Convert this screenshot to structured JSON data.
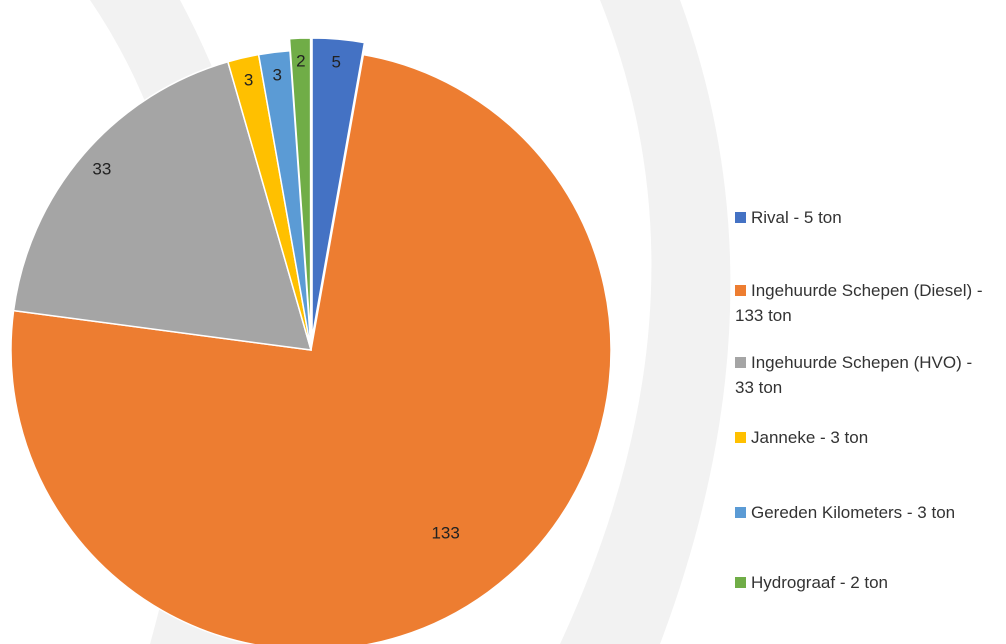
{
  "chart_data": {
    "type": "pie",
    "series": [
      {
        "name": "Rival - 5 ton",
        "color": "#4472c4",
        "value": 5
      },
      {
        "name": "Ingehuurde Schepen (Diesel) - 133 ton",
        "color": "#ed7d31",
        "value": 133
      },
      {
        "name": "Ingehuurde Schepen (HVO) - 33 ton",
        "color": "#a5a5a5",
        "value": 33
      },
      {
        "name": "Janneke - 3 ton",
        "color": "#ffc000",
        "value": 3
      },
      {
        "name": "Gereden Kilometers - 3 ton",
        "color": "#5b9bd5",
        "value": 3
      },
      {
        "name": "Hydrograaf - 2 ton",
        "color": "#70ad47",
        "value": 2
      }
    ]
  }
}
